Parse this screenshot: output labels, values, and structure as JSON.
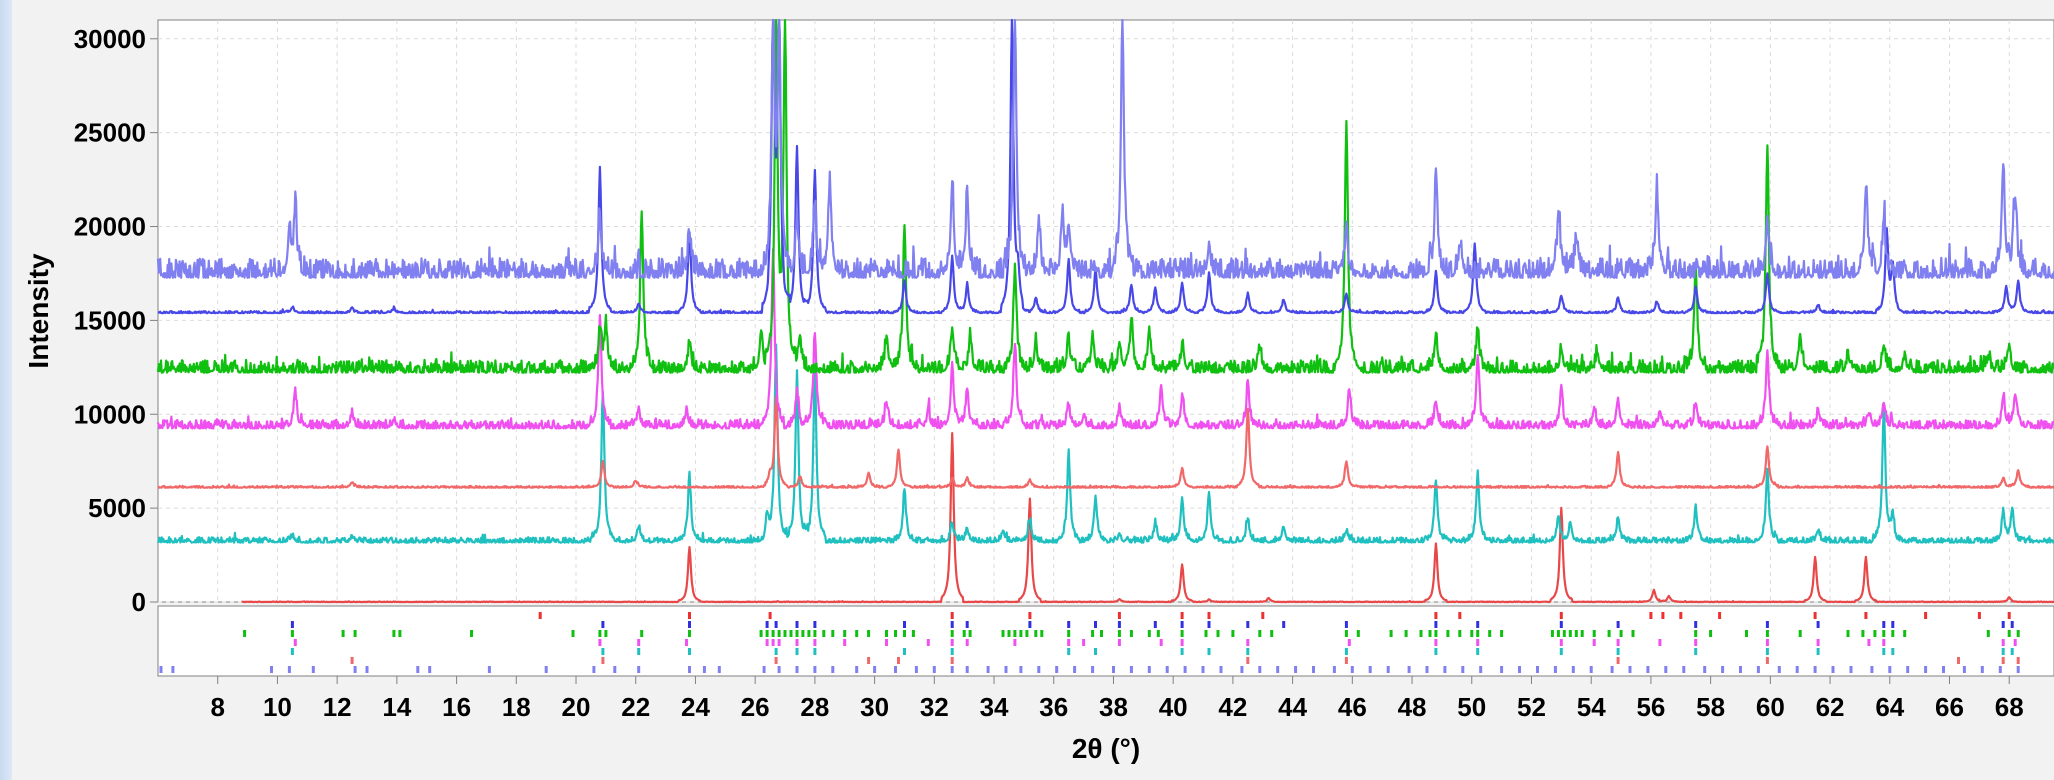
{
  "chart_data": {
    "type": "line",
    "title": "",
    "xlabel": "2θ (°)",
    "ylabel": "Intensity",
    "xlim": [
      6.0,
      69.5
    ],
    "ylim": [
      0,
      31000
    ],
    "x_ticks": [
      "8",
      "10",
      "12",
      "14",
      "16",
      "18",
      "20",
      "22",
      "24",
      "26",
      "28",
      "30",
      "32",
      "34",
      "36",
      "38",
      "40",
      "42",
      "44",
      "46",
      "48",
      "50",
      "52",
      "54",
      "56",
      "58",
      "60",
      "62",
      "64",
      "66",
      "68"
    ],
    "y_ticks": [
      "0",
      "5000",
      "10000",
      "15000",
      "20000",
      "25000",
      "30000"
    ],
    "grid": true,
    "legend": "none",
    "series": [
      {
        "color": "#e84848",
        "baseline": 0,
        "noise": 20,
        "start": 8.8,
        "peaks": [
          [
            23.8,
            2900
          ],
          [
            32.6,
            9000
          ],
          [
            35.2,
            5500
          ],
          [
            38.2,
            150
          ],
          [
            40.3,
            2000
          ],
          [
            41.2,
            120
          ],
          [
            43.2,
            200
          ],
          [
            48.8,
            3100
          ],
          [
            53.0,
            5000
          ],
          [
            56.1,
            650
          ],
          [
            56.6,
            300
          ],
          [
            61.5,
            2400
          ],
          [
            63.2,
            2400
          ],
          [
            68.0,
            250
          ]
        ]
      },
      {
        "color": "#20c0c0",
        "baseline": 3200,
        "noise": 180,
        "start": 6.0,
        "peaks": [
          [
            10.5,
            300
          ],
          [
            12.5,
            250
          ],
          [
            20.9,
            8000
          ],
          [
            22.1,
            800
          ],
          [
            23.8,
            3500
          ],
          [
            26.4,
            1200
          ],
          [
            26.7,
            10500
          ],
          [
            27.4,
            9000
          ],
          [
            28.0,
            9300
          ],
          [
            31.0,
            2800
          ],
          [
            32.6,
            1000
          ],
          [
            33.1,
            700
          ],
          [
            34.3,
            600
          ],
          [
            35.2,
            1200
          ],
          [
            36.5,
            4700
          ],
          [
            37.4,
            2400
          ],
          [
            38.2,
            400
          ],
          [
            39.4,
            1000
          ],
          [
            40.3,
            2400
          ],
          [
            41.2,
            2600
          ],
          [
            42.5,
            1200
          ],
          [
            43.7,
            800
          ],
          [
            45.8,
            600
          ],
          [
            48.8,
            3300
          ],
          [
            50.2,
            3700
          ],
          [
            52.9,
            1400
          ],
          [
            53.3,
            1000
          ],
          [
            54.9,
            1300
          ],
          [
            57.5,
            1800
          ],
          [
            59.9,
            3700
          ],
          [
            61.6,
            600
          ],
          [
            63.8,
            7200
          ],
          [
            64.1,
            1300
          ],
          [
            67.8,
            1600
          ],
          [
            68.1,
            1800
          ]
        ]
      },
      {
        "color": "#f06868",
        "baseline": 6100,
        "noise": 60,
        "start": 6.0,
        "peaks": [
          [
            12.5,
            250
          ],
          [
            20.9,
            1400
          ],
          [
            22.0,
            350
          ],
          [
            26.5,
            600
          ],
          [
            26.7,
            4800
          ],
          [
            27.5,
            600
          ],
          [
            29.8,
            800
          ],
          [
            30.8,
            2000
          ],
          [
            32.6,
            500
          ],
          [
            33.1,
            500
          ],
          [
            35.2,
            400
          ],
          [
            40.3,
            1000
          ],
          [
            42.5,
            4200
          ],
          [
            45.8,
            1400
          ],
          [
            54.9,
            1900
          ],
          [
            59.9,
            2200
          ],
          [
            67.8,
            500
          ],
          [
            68.3,
            900
          ]
        ]
      },
      {
        "color": "#f050f0",
        "baseline": 9300,
        "noise": 280,
        "start": 6.0,
        "peaks": [
          [
            10.6,
            1800
          ],
          [
            12.5,
            700
          ],
          [
            13.9,
            400
          ],
          [
            20.8,
            6000
          ],
          [
            22.1,
            900
          ],
          [
            23.7,
            900
          ],
          [
            26.6,
            9500
          ],
          [
            27.4,
            1800
          ],
          [
            28.0,
            5000
          ],
          [
            30.4,
            1300
          ],
          [
            31.8,
            900
          ],
          [
            32.6,
            3200
          ],
          [
            33.1,
            2000
          ],
          [
            34.7,
            4500
          ],
          [
            36.5,
            1100
          ],
          [
            37.0,
            600
          ],
          [
            38.2,
            800
          ],
          [
            39.6,
            2200
          ],
          [
            40.3,
            1600
          ],
          [
            42.5,
            2200
          ],
          [
            45.9,
            2000
          ],
          [
            48.8,
            1400
          ],
          [
            50.2,
            3900
          ],
          [
            53.0,
            1900
          ],
          [
            54.1,
            1000
          ],
          [
            54.9,
            1500
          ],
          [
            56.3,
            900
          ],
          [
            57.5,
            1300
          ],
          [
            59.9,
            4000
          ],
          [
            61.6,
            800
          ],
          [
            63.3,
            800
          ],
          [
            63.8,
            1300
          ],
          [
            67.8,
            1700
          ],
          [
            68.2,
            1800
          ]
        ]
      },
      {
        "color": "#10c010",
        "baseline": 12300,
        "noise": 420,
        "start": 6.0,
        "peaks": [
          [
            20.8,
            2200
          ],
          [
            21.0,
            2400
          ],
          [
            22.2,
            8500
          ],
          [
            23.8,
            1300
          ],
          [
            26.2,
            2000
          ],
          [
            26.7,
            18000
          ],
          [
            27.0,
            18500
          ],
          [
            27.5,
            1800
          ],
          [
            30.4,
            1800
          ],
          [
            31.0,
            7400
          ],
          [
            32.6,
            2300
          ],
          [
            33.2,
            1800
          ],
          [
            34.7,
            5500
          ],
          [
            35.4,
            1600
          ],
          [
            36.5,
            1600
          ],
          [
            37.3,
            2000
          ],
          [
            38.2,
            1600
          ],
          [
            38.6,
            2700
          ],
          [
            39.2,
            2200
          ],
          [
            40.3,
            1300
          ],
          [
            42.9,
            1300
          ],
          [
            45.8,
            13400
          ],
          [
            48.8,
            2000
          ],
          [
            50.2,
            2200
          ],
          [
            53.0,
            1200
          ],
          [
            54.2,
            1000
          ],
          [
            57.5,
            5400
          ],
          [
            59.9,
            12000
          ],
          [
            61.0,
            1800
          ],
          [
            62.6,
            700
          ],
          [
            63.8,
            1400
          ],
          [
            64.5,
            800
          ],
          [
            67.3,
            800
          ],
          [
            68.0,
            1200
          ]
        ]
      },
      {
        "color": "#4848e8",
        "baseline": 15400,
        "noise": 70,
        "start": 6.0,
        "peaks": [
          [
            10.5,
            300
          ],
          [
            12.5,
            200
          ],
          [
            13.9,
            200
          ],
          [
            20.8,
            7700
          ],
          [
            22.1,
            500
          ],
          [
            23.8,
            4300
          ],
          [
            26.6,
            15500
          ],
          [
            26.8,
            15600
          ],
          [
            27.4,
            8900
          ],
          [
            28.0,
            7600
          ],
          [
            31.0,
            1700
          ],
          [
            32.6,
            3000
          ],
          [
            33.1,
            1500
          ],
          [
            34.6,
            15600
          ],
          [
            34.8,
            1900
          ],
          [
            35.4,
            800
          ],
          [
            36.5,
            2800
          ],
          [
            37.4,
            2300
          ],
          [
            38.6,
            1500
          ],
          [
            39.4,
            1300
          ],
          [
            40.3,
            1600
          ],
          [
            41.2,
            2100
          ],
          [
            42.5,
            1000
          ],
          [
            43.7,
            700
          ],
          [
            45.8,
            1000
          ],
          [
            48.8,
            2200
          ],
          [
            50.1,
            3700
          ],
          [
            53.0,
            900
          ],
          [
            54.9,
            800
          ],
          [
            56.2,
            600
          ],
          [
            57.5,
            1400
          ],
          [
            59.9,
            2100
          ],
          [
            61.6,
            400
          ],
          [
            63.9,
            4300
          ],
          [
            64.1,
            2400
          ],
          [
            67.9,
            1400
          ],
          [
            68.3,
            1700
          ]
        ]
      },
      {
        "color": "#8080f0",
        "baseline": 17400,
        "noise": 650,
        "start": 6.0,
        "peaks": [
          [
            10.4,
            2400
          ],
          [
            10.6,
            3400
          ],
          [
            20.8,
            3200
          ],
          [
            23.8,
            2200
          ],
          [
            26.6,
            13000
          ],
          [
            26.8,
            13200
          ],
          [
            27.4,
            3000
          ],
          [
            28.0,
            3800
          ],
          [
            28.5,
            4800
          ],
          [
            32.6,
            5000
          ],
          [
            33.1,
            4200
          ],
          [
            34.7,
            13600
          ],
          [
            35.5,
            2800
          ],
          [
            36.3,
            3000
          ],
          [
            36.5,
            2500
          ],
          [
            38.3,
            13600
          ],
          [
            41.2,
            1700
          ],
          [
            45.8,
            2300
          ],
          [
            48.8,
            5200
          ],
          [
            49.6,
            1600
          ],
          [
            52.9,
            3000
          ],
          [
            53.5,
            2000
          ],
          [
            56.2,
            4700
          ],
          [
            59.9,
            2700
          ],
          [
            63.2,
            4700
          ],
          [
            63.8,
            3000
          ],
          [
            67.8,
            6000
          ],
          [
            68.2,
            4200
          ]
        ]
      }
    ],
    "reference_ticks": {
      "rows": [
        {
          "color": "#ee3030",
          "positions": [
            18.8,
            23.8,
            26.5,
            32.6,
            35.2,
            38.2,
            40.3,
            41.2,
            43.0,
            48.8,
            49.6,
            53.0,
            56.0,
            56.4,
            57.0,
            58.3,
            61.5,
            63.2,
            65.2,
            67.0,
            68.0
          ]
        },
        {
          "color": "#3030e0",
          "positions": [
            10.5,
            20.9,
            23.8,
            26.4,
            26.7,
            27.4,
            28.0,
            31.0,
            32.6,
            33.1,
            35.2,
            36.5,
            37.4,
            38.2,
            39.4,
            40.3,
            41.2,
            42.5,
            43.7,
            45.8,
            48.8,
            50.2,
            53.0,
            54.9,
            57.5,
            59.9,
            61.6,
            63.8,
            64.1,
            67.8,
            68.1
          ]
        },
        {
          "color": "#10c010",
          "positions": [
            8.9,
            10.5,
            12.2,
            12.6,
            13.9,
            14.1,
            16.5,
            19.9,
            20.8,
            21.0,
            22.2,
            23.8,
            26.2,
            26.4,
            26.6,
            26.8,
            27.0,
            27.2,
            27.4,
            27.6,
            27.8,
            28.0,
            28.3,
            28.6,
            29.0,
            29.4,
            29.8,
            30.4,
            30.7,
            31.0,
            31.3,
            32.6,
            33.0,
            33.2,
            34.3,
            34.5,
            34.7,
            34.9,
            35.1,
            35.4,
            35.6,
            36.5,
            37.3,
            37.6,
            38.2,
            38.6,
            39.2,
            39.5,
            40.3,
            41.1,
            41.5,
            42.0,
            42.9,
            43.3,
            45.8,
            46.2,
            47.3,
            47.8,
            48.3,
            48.6,
            48.8,
            49.2,
            49.6,
            50.0,
            50.2,
            50.6,
            51.0,
            52.7,
            52.9,
            53.1,
            53.3,
            53.5,
            53.7,
            54.1,
            54.6,
            55.0,
            55.4,
            57.5,
            58.0,
            59.2,
            59.9,
            61.0,
            62.6,
            63.1,
            63.5,
            63.8,
            64.1,
            64.5,
            67.3,
            68.0,
            68.3
          ]
        },
        {
          "color": "#f050f0",
          "positions": [
            10.6,
            20.8,
            22.1,
            23.7,
            26.4,
            26.6,
            26.8,
            27.4,
            28.0,
            29.0,
            30.4,
            31.8,
            32.6,
            33.1,
            34.7,
            36.5,
            37.0,
            38.2,
            39.6,
            40.3,
            42.5,
            45.9,
            48.8,
            50.2,
            53.0,
            54.1,
            54.9,
            56.3,
            57.5,
            59.9,
            61.6,
            63.3,
            63.8,
            67.8,
            68.2
          ]
        },
        {
          "color": "#20c0c0",
          "positions": [
            10.5,
            20.9,
            22.1,
            23.8,
            26.7,
            27.4,
            28.0,
            31.0,
            32.6,
            36.5,
            37.4,
            40.3,
            41.2,
            42.5,
            45.8,
            48.8,
            50.2,
            53.0,
            54.9,
            57.5,
            59.9,
            61.6,
            63.8,
            64.1,
            67.8,
            68.1
          ]
        },
        {
          "color": "#f06868",
          "positions": [
            12.5,
            20.9,
            26.7,
            29.8,
            30.8,
            32.6,
            42.5,
            45.8,
            54.9,
            59.9,
            66.3,
            67.8,
            68.3
          ]
        },
        {
          "color": "#8080f0",
          "positions": [
            6.1,
            6.5,
            9.8,
            10.4,
            11.2,
            12.6,
            13.0,
            14.7,
            15.1,
            17.1,
            19.0,
            20.6,
            21.3,
            22.1,
            23.8,
            24.3,
            24.8,
            26.3,
            26.8,
            27.4,
            28.0,
            28.6,
            29.4,
            30.0,
            30.7,
            31.4,
            32.0,
            32.6,
            33.1,
            33.8,
            34.4,
            34.9,
            35.5,
            36.1,
            36.7,
            37.3,
            38.0,
            38.6,
            39.2,
            39.8,
            40.4,
            41.0,
            41.6,
            42.3,
            42.9,
            43.5,
            44.1,
            44.7,
            45.4,
            46.0,
            46.6,
            47.2,
            47.9,
            48.5,
            49.1,
            49.7,
            50.3,
            51.0,
            51.6,
            52.2,
            52.8,
            53.4,
            54.0,
            54.7,
            55.3,
            55.9,
            56.5,
            57.1,
            57.8,
            58.4,
            59.0,
            59.6,
            60.3,
            60.9,
            61.5,
            62.1,
            62.7,
            63.4,
            64.0,
            64.6,
            65.2,
            65.8,
            66.5,
            67.1,
            67.7,
            68.3
          ]
        }
      ]
    }
  }
}
